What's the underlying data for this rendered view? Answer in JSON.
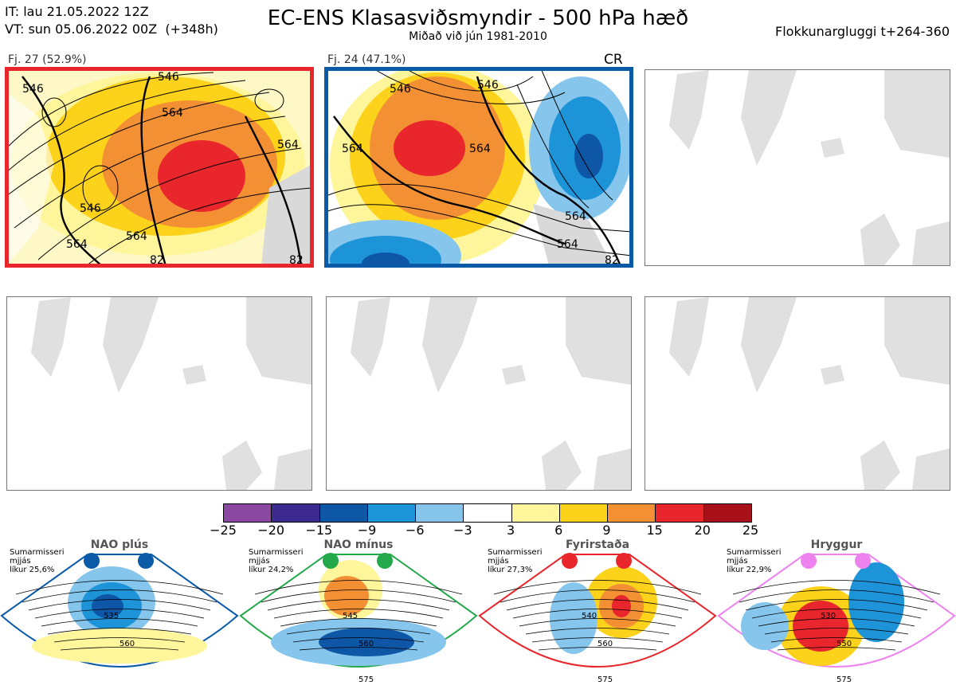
{
  "header": {
    "issue_time": "IT: lau 21.05.2022 12Z",
    "valid_time": "VT: sun 05.06.2022 00Z  (+348h)",
    "title": "EC-ENS Klasasviðsmyndir - 500 hPa hæð",
    "subtitle": "Miðað við jún 1981-2010",
    "window": "Flokkunargluggi t+264-360"
  },
  "panels": [
    {
      "label": "Fj. 27 (52.9%)",
      "frame_color": "#e8262b",
      "tag": "",
      "contours": [
        "546",
        "564",
        "546",
        "546",
        "564",
        "564",
        "564",
        "82",
        "82"
      ]
    },
    {
      "label": "Fj. 24 (47.1%)",
      "frame_color": "#0a5aa8",
      "tag": "CR",
      "contours": [
        "546",
        "564",
        "564",
        "546",
        "564",
        "82",
        "564"
      ]
    },
    {
      "label": "",
      "frame_color": "#777777",
      "tag": "",
      "contours": []
    },
    {
      "label": "",
      "frame_color": "#777777",
      "tag": "",
      "contours": []
    },
    {
      "label": "",
      "frame_color": "#777777",
      "tag": "",
      "contours": []
    },
    {
      "label": "",
      "frame_color": "#777777",
      "tag": "",
      "contours": []
    }
  ],
  "colorbar": {
    "labels": [
      "−25",
      "−20",
      "−15",
      "−9",
      "−6",
      "−3",
      "3",
      "6",
      "9",
      "15",
      "20",
      "25"
    ],
    "colors": [
      "#8b48a0",
      "#3d2a8f",
      "#0d57a6",
      "#1d93d8",
      "#86c5ec",
      "#ffffff",
      "#fff59b",
      "#fcd21b",
      "#f39034",
      "#e8262b",
      "#a8111a"
    ]
  },
  "regimes": [
    {
      "name": "NAO plús",
      "info": "Sumarmisseri\nmjjás\nlíkur 25,6%",
      "color": "#0a5aa8",
      "contours": [
        "535",
        "560"
      ]
    },
    {
      "name": "NAO mínus",
      "info": "Sumarmisseri\nmjjás\nlíkur 24,2%",
      "color": "#23a84a",
      "contours": [
        "545",
        "560",
        "575"
      ]
    },
    {
      "name": "Fyrirstaða",
      "info": "Sumarmisseri\nmjjás\nlíkur 27,3%",
      "color": "#e8262b",
      "contours": [
        "540",
        "560",
        "575"
      ]
    },
    {
      "name": "Hryggur",
      "info": "Sumarmisseri\nmjjás\nlíkur 22,9%",
      "color": "#ee82ee",
      "contours": [
        "530",
        "550",
        "575"
      ]
    }
  ]
}
